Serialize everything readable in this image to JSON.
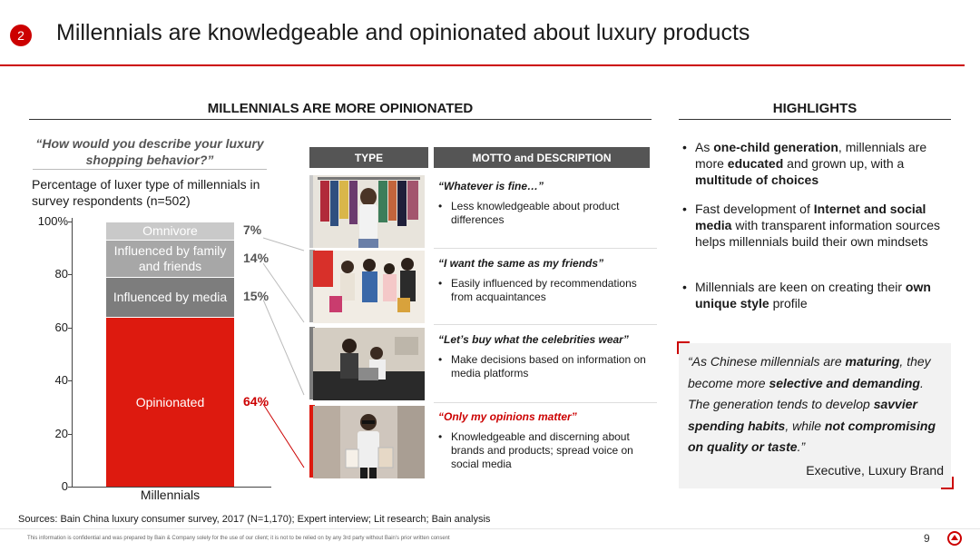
{
  "slide": {
    "badge": "2",
    "title": "Millennials are knowledgeable and opinionated about luxury products"
  },
  "left_section": {
    "heading": "MILLENNIALS ARE MORE OPINIONATED",
    "question": "“How would you describe your luxury shopping behavior?”",
    "y_caption": "Percentage of luxer type of millennials in survey respondents (n=502)"
  },
  "chart_data": {
    "type": "bar",
    "stacked": true,
    "categories": [
      "Millennials"
    ],
    "series": [
      {
        "name": "Opinionated",
        "values": [
          64
        ],
        "label": "64%",
        "color": "#dd1a0f"
      },
      {
        "name": "Influenced by media",
        "values": [
          15
        ],
        "label": "15%",
        "color": "#7d7d7d"
      },
      {
        "name": "Influenced by family and friends",
        "values": [
          14
        ],
        "label": "14%",
        "color": "#a7a7a7"
      },
      {
        "name": "Omnivore",
        "values": [
          7
        ],
        "label": "7%",
        "color": "#c9c9c9"
      }
    ],
    "segment_labels": [
      "Opinionated",
      "Influenced by media",
      "Influenced by family and friends",
      "Omnivore"
    ],
    "y_ticks": [
      "0",
      "20",
      "40",
      "60",
      "80",
      "100%"
    ],
    "ylim": [
      0,
      100
    ],
    "label_colors": {
      "highlight": "#cc0000",
      "default": "#555555"
    }
  },
  "table": {
    "headers": [
      "TYPE",
      "MOTTO and DESCRIPTION"
    ],
    "rows": [
      {
        "image": "clothes-rack-photo",
        "motto": "“Whatever is fine…”",
        "motto_color": "#1a1a1a",
        "description": "Less knowledgeable about product differences"
      },
      {
        "image": "friends-shopping-photo",
        "motto": "“I want the same as my friends”",
        "motto_color": "#1a1a1a",
        "description": "Easily influenced by recommendations from acquaintances"
      },
      {
        "image": "couple-media-photo",
        "motto": "“Let’s buy what the celebrities wear”",
        "motto_color": "#1a1a1a",
        "description": "Make decisions based on information on media platforms"
      },
      {
        "image": "woman-shopping-bags-photo",
        "motto": "“Only my opinions matter”",
        "motto_color": "#cc0000",
        "description": "Knowledgeable and discerning about brands and products; spread voice on social media"
      }
    ]
  },
  "highlights": {
    "heading": "HIGHLIGHTS",
    "bullets": [
      [
        {
          "t": "As "
        },
        {
          "t": "one-child generation",
          "b": true
        },
        {
          "t": ", millennials are more "
        },
        {
          "t": "educated",
          "b": true
        },
        {
          "t": " and grown up, with a "
        },
        {
          "t": "multitude of choices",
          "b": true
        }
      ],
      [
        {
          "t": "Fast development of "
        },
        {
          "t": "Internet and social media",
          "b": true
        },
        {
          "t": " with transparent information sources helps millennials build their own mindsets"
        }
      ],
      [
        {
          "t": "Millennials are keen on creating their "
        },
        {
          "t": "own unique style",
          "b": true
        },
        {
          "t": " profile"
        }
      ]
    ]
  },
  "quote": {
    "parts": [
      {
        "t": "“As Chinese millennials are "
      },
      {
        "t": "maturing",
        "b": true
      },
      {
        "t": ", they become more "
      },
      {
        "t": "selective and demanding",
        "b": true
      },
      {
        "t": ". The generation tends to develop "
      },
      {
        "t": "savvier spending habits",
        "b": true
      },
      {
        "t": ", while "
      },
      {
        "t": "not compromising on quality or taste",
        "b": true
      },
      {
        "t": ".”"
      }
    ],
    "author": "Executive, Luxury Brand"
  },
  "footer": {
    "sources": "Sources: Bain China luxury consumer survey, 2017 (N=1,170); Expert interview; Lit research; Bain analysis",
    "disclaimer": "This information is confidential and was prepared by Bain & Company solely for the use of our client; it is not to be relied on by any 3rd party without Bain's prior written consent",
    "page": "9"
  },
  "colors": {
    "accent": "#cc0000",
    "table_header": "#555555"
  }
}
